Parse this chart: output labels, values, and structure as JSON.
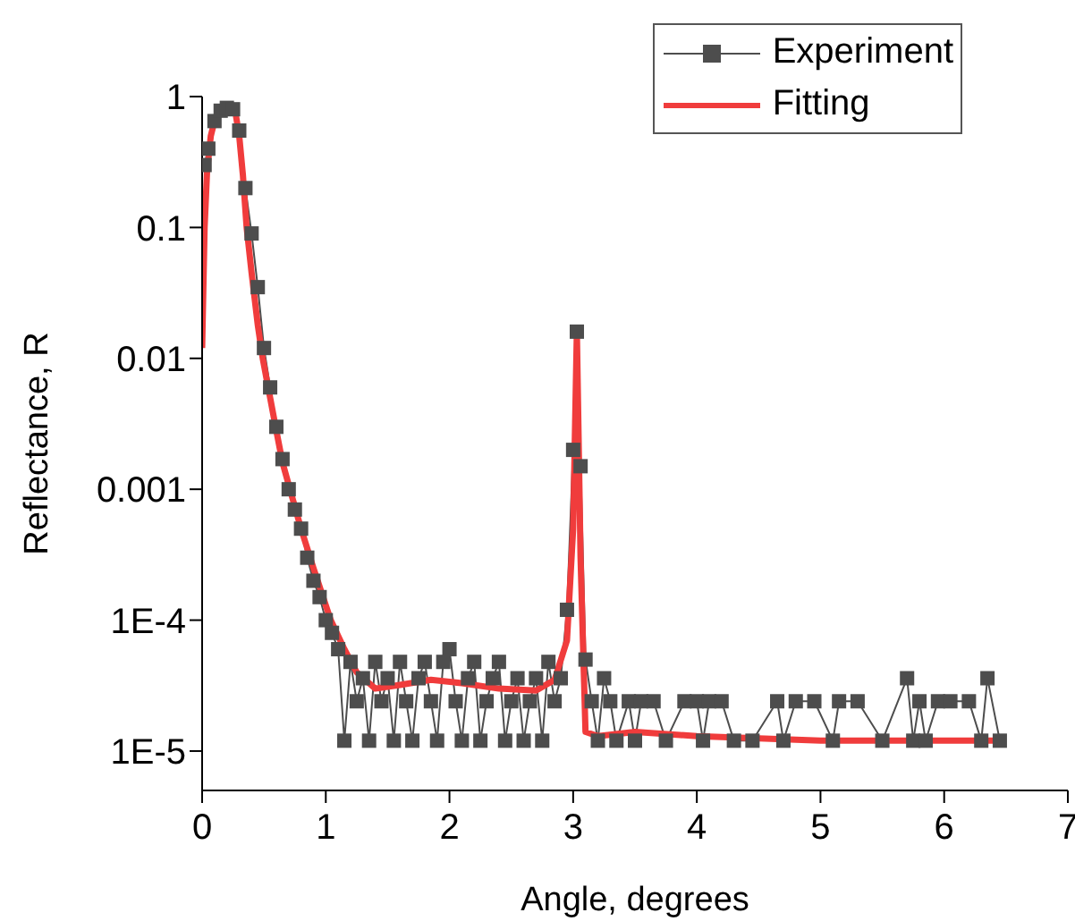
{
  "chart_data": {
    "type": "line",
    "xlabel": "Angle, degrees",
    "ylabel": "Reflectance, R",
    "log": "y",
    "xlim": [
      0,
      7
    ],
    "xticks": [
      0,
      1,
      2,
      3,
      4,
      5,
      6,
      7
    ],
    "ylim": [
      5e-06,
      1
    ],
    "yticks": [
      {
        "value": 1e-05,
        "label": "1E-5"
      },
      {
        "value": 0.0001,
        "label": "1E-4"
      },
      0.001,
      0.01,
      0.1,
      1
    ],
    "legend": "top right",
    "series": [
      {
        "name": "Experiment",
        "color": "#4d4d4d",
        "marker": "square",
        "x": [
          0.02,
          0.05,
          0.1,
          0.15,
          0.2,
          0.25,
          0.3,
          0.35,
          0.4,
          0.45,
          0.5,
          0.55,
          0.6,
          0.65,
          0.7,
          0.75,
          0.8,
          0.85,
          0.9,
          0.95,
          1.0,
          1.05,
          1.1,
          1.15,
          1.2,
          1.25,
          1.3,
          1.35,
          1.4,
          1.45,
          1.5,
          1.55,
          1.6,
          1.65,
          1.7,
          1.75,
          1.8,
          1.85,
          1.9,
          1.95,
          2.0,
          2.05,
          2.1,
          2.15,
          2.2,
          2.25,
          2.3,
          2.35,
          2.4,
          2.45,
          2.5,
          2.55,
          2.6,
          2.65,
          2.7,
          2.75,
          2.8,
          2.85,
          2.9,
          2.95,
          3.0,
          3.03,
          3.06,
          3.1,
          3.15,
          3.2,
          3.25,
          3.3,
          3.35,
          3.45,
          3.5,
          3.55,
          3.65,
          3.75,
          3.9,
          4.0,
          4.05,
          4.1,
          4.2,
          4.3,
          4.45,
          4.65,
          4.7,
          4.8,
          4.95,
          5.1,
          5.15,
          5.3,
          5.5,
          5.7,
          5.75,
          5.8,
          5.85,
          5.95,
          6.05,
          6.2,
          6.3,
          6.35,
          6.45
        ],
        "values": [
          0.3,
          0.4,
          0.65,
          0.78,
          0.82,
          0.8,
          0.55,
          0.2,
          0.09,
          0.035,
          0.012,
          0.006,
          0.003,
          0.0017,
          0.001,
          0.0007,
          0.0005,
          0.0003,
          0.0002,
          0.00015,
          0.0001,
          8e-05,
          6e-05,
          1.2e-05,
          4.8e-05,
          2.4e-05,
          3.6e-05,
          1.2e-05,
          4.8e-05,
          2.4e-05,
          3.6e-05,
          1.2e-05,
          4.8e-05,
          2.4e-05,
          1.2e-05,
          3.6e-05,
          4.8e-05,
          2.4e-05,
          1.2e-05,
          4.8e-05,
          6e-05,
          2.4e-05,
          1.2e-05,
          3.6e-05,
          4.8e-05,
          1.2e-05,
          2.4e-05,
          3.6e-05,
          4.8e-05,
          1.2e-05,
          2.4e-05,
          3.6e-05,
          1.2e-05,
          2.4e-05,
          3.6e-05,
          1.2e-05,
          4.8e-05,
          2.4e-05,
          3.6e-05,
          0.00012,
          0.002,
          0.016,
          0.0015,
          5e-05,
          2.4e-05,
          1.2e-05,
          3.6e-05,
          2.4e-05,
          1.2e-05,
          2.4e-05,
          1.2e-05,
          2.4e-05,
          2.4e-05,
          1.2e-05,
          2.4e-05,
          2.4e-05,
          1.2e-05,
          2.4e-05,
          2.4e-05,
          1.2e-05,
          1.2e-05,
          2.4e-05,
          1.2e-05,
          2.4e-05,
          2.4e-05,
          1.2e-05,
          2.4e-05,
          2.4e-05,
          1.2e-05,
          3.6e-05,
          1.2e-05,
          2.4e-05,
          1.2e-05,
          2.4e-05,
          2.4e-05,
          2.4e-05,
          1.2e-05,
          3.6e-05,
          1.2e-05
        ]
      },
      {
        "name": "Fitting",
        "color": "#f03c3c",
        "marker": "none",
        "x": [
          0,
          0.02,
          0.04,
          0.07,
          0.1,
          0.15,
          0.2,
          0.23,
          0.27,
          0.3,
          0.33,
          0.36,
          0.4,
          0.45,
          0.49,
          0.55,
          0.6,
          0.65,
          0.71,
          0.8,
          0.9,
          1.04,
          1.15,
          1.25,
          1.4,
          1.6,
          1.85,
          2.1,
          2.4,
          2.7,
          2.85,
          2.95,
          3.0,
          3.03,
          3.06,
          3.1,
          3.2,
          3.5,
          4.0,
          4.5,
          5.0,
          5.5,
          6.0,
          6.45
        ],
        "values": [
          0.012,
          0.1,
          0.27,
          0.5,
          0.65,
          0.77,
          0.82,
          0.83,
          0.75,
          0.5,
          0.25,
          0.1,
          0.045,
          0.018,
          0.01,
          0.005,
          0.0028,
          0.0016,
          0.001,
          0.0005,
          0.00025,
          0.0001,
          6e-05,
          4e-05,
          3e-05,
          3.2e-05,
          3.5e-05,
          3.3e-05,
          3e-05,
          2.9e-05,
          3.5e-05,
          7e-05,
          0.0005,
          0.016,
          0.0003,
          1.4e-05,
          1.3e-05,
          1.4e-05,
          1.3e-05,
          1.25e-05,
          1.2e-05,
          1.2e-05,
          1.2e-05,
          1.2e-05
        ]
      }
    ]
  }
}
